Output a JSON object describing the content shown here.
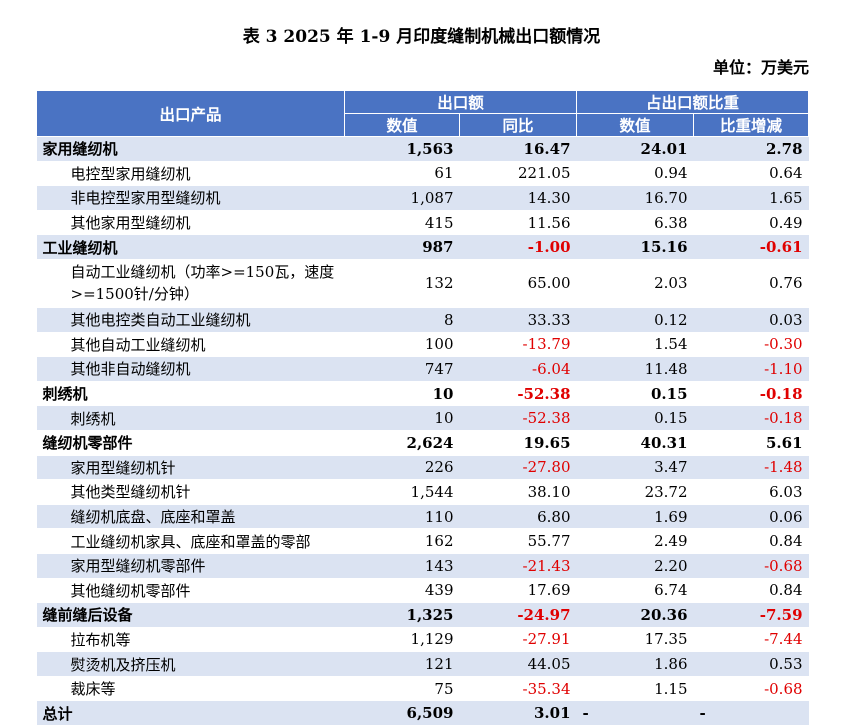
{
  "title": "表 3  2025 年 1-9 月印度缝制机械出口额情况",
  "unit": "单位：万美元",
  "header": {
    "product": "出口产品",
    "export_value": "出口额",
    "share": "占出口额比重",
    "value": "数值",
    "yoy": "同比",
    "share_value": "数值",
    "share_change": "比重增减"
  },
  "rows": [
    {
      "name": "家用缝纫机",
      "value": "1,563",
      "yoy": "16.47",
      "share": "24.01",
      "change": "2.78",
      "level": "cat"
    },
    {
      "name": "电控型家用缝纫机",
      "value": "61",
      "yoy": "221.05",
      "share": "0.94",
      "change": "0.64",
      "level": "sub"
    },
    {
      "name": "非电控型家用型缝纫机",
      "value": "1,087",
      "yoy": "14.30",
      "share": "16.70",
      "change": "1.65",
      "level": "sub"
    },
    {
      "name": "其他家用型缝纫机",
      "value": "415",
      "yoy": "11.56",
      "share": "6.38",
      "change": "0.49",
      "level": "sub"
    },
    {
      "name": "工业缝纫机",
      "value": "987",
      "yoy": "-1.00",
      "share": "15.16",
      "change": "-0.61",
      "level": "cat"
    },
    {
      "name": "自动工业缝纫机（功率>=150瓦，速度>=1500针/分钟）",
      "value": "132",
      "yoy": "65.00",
      "share": "2.03",
      "change": "0.76",
      "level": "sub",
      "tall": true
    },
    {
      "name": "其他电控类自动工业缝纫机",
      "value": "8",
      "yoy": "33.33",
      "share": "0.12",
      "change": "0.03",
      "level": "sub"
    },
    {
      "name": "其他自动工业缝纫机",
      "value": "100",
      "yoy": "-13.79",
      "share": "1.54",
      "change": "-0.30",
      "level": "sub"
    },
    {
      "name": "其他非自动缝纫机",
      "value": "747",
      "yoy": "-6.04",
      "share": "11.48",
      "change": "-1.10",
      "level": "sub"
    },
    {
      "name": "刺绣机",
      "value": "10",
      "yoy": "-52.38",
      "share": "0.15",
      "change": "-0.18",
      "level": "cat"
    },
    {
      "name": "刺绣机",
      "value": "10",
      "yoy": "-52.38",
      "share": "0.15",
      "change": "-0.18",
      "level": "sub"
    },
    {
      "name": "缝纫机零部件",
      "value": "2,624",
      "yoy": "19.65",
      "share": "40.31",
      "change": "5.61",
      "level": "cat"
    },
    {
      "name": "家用型缝纫机针",
      "value": "226",
      "yoy": "-27.80",
      "share": "3.47",
      "change": "-1.48",
      "level": "sub"
    },
    {
      "name": "其他类型缝纫机针",
      "value": "1,544",
      "yoy": "38.10",
      "share": "23.72",
      "change": "6.03",
      "level": "sub"
    },
    {
      "name": "缝纫机底盘、底座和罩盖",
      "value": "110",
      "yoy": "6.80",
      "share": "1.69",
      "change": "0.06",
      "level": "sub"
    },
    {
      "name": "工业缝纫机家具、底座和罩盖的零部",
      "value": "162",
      "yoy": "55.77",
      "share": "2.49",
      "change": "0.84",
      "level": "sub"
    },
    {
      "name": "家用型缝纫机零部件",
      "value": "143",
      "yoy": "-21.43",
      "share": "2.20",
      "change": "-0.68",
      "level": "sub"
    },
    {
      "name": "其他缝纫机零部件",
      "value": "439",
      "yoy": "17.69",
      "share": "6.74",
      "change": "0.84",
      "level": "sub"
    },
    {
      "name": "缝前缝后设备",
      "value": "1,325",
      "yoy": "-24.97",
      "share": "20.36",
      "change": "-7.59",
      "level": "cat"
    },
    {
      "name": "拉布机等",
      "value": "1,129",
      "yoy": "-27.91",
      "share": "17.35",
      "change": "-7.44",
      "level": "sub"
    },
    {
      "name": "熨烫机及挤压机",
      "value": "121",
      "yoy": "44.05",
      "share": "1.86",
      "change": "0.53",
      "level": "sub"
    },
    {
      "name": "裁床等",
      "value": "75",
      "yoy": "-35.34",
      "share": "1.15",
      "change": "-0.68",
      "level": "sub"
    },
    {
      "name": "总计",
      "value": "6,509",
      "yoy": "3.01",
      "share": "-",
      "change": "-",
      "level": "total"
    }
  ]
}
